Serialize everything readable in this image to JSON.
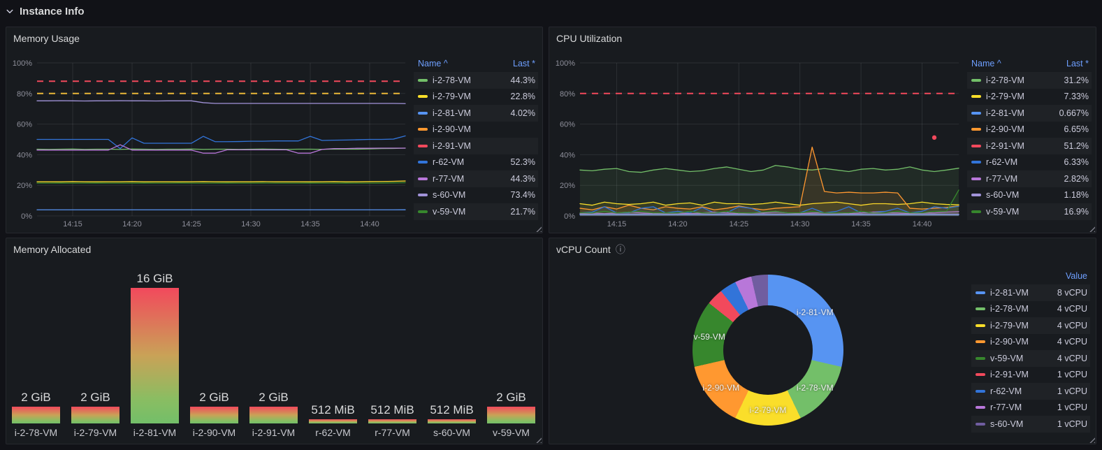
{
  "header": {
    "title": "Instance Info"
  },
  "icons": {
    "info": "ⓘ"
  },
  "legend_headers": {
    "name": "Name ^",
    "last": "Last *",
    "value": "Value"
  },
  "panels": {
    "memory_usage": {
      "title": "Memory Usage"
    },
    "cpu_utilization": {
      "title": "CPU Utilization"
    },
    "memory_allocated": {
      "title": "Memory Allocated"
    },
    "vcpu_count": {
      "title": "vCPU Count"
    }
  },
  "chart_data": [
    {
      "id": "memory_usage",
      "type": "line",
      "title": "Memory Usage",
      "ylim": [
        0,
        100
      ],
      "y_ticks": [
        {
          "v": 0,
          "label": "0%"
        },
        {
          "v": 20,
          "label": "20%"
        },
        {
          "v": 40,
          "label": "40%"
        },
        {
          "v": 60,
          "label": "60%"
        },
        {
          "v": 80,
          "label": "80%"
        },
        {
          "v": 100,
          "label": "100%"
        }
      ],
      "x_ticks": [
        {
          "f": 0.0968,
          "label": "14:15"
        },
        {
          "f": 0.2581,
          "label": "14:20"
        },
        {
          "f": 0.4194,
          "label": "14:25"
        },
        {
          "f": 0.5806,
          "label": "14:30"
        },
        {
          "f": 0.7419,
          "label": "14:35"
        },
        {
          "f": 0.9032,
          "label": "14:40"
        }
      ],
      "grid": true,
      "legend_position": "right",
      "fill_opacity": 0,
      "thresholds": [
        {
          "value": 88,
          "color": "#f2495c",
          "style": "dashed"
        },
        {
          "value": 80,
          "color": "#eab839",
          "style": "dashed"
        }
      ],
      "series": [
        {
          "name": "i-2-78-VM",
          "color": "#73bf69",
          "last": "44.3%",
          "values": [
            43.6,
            43.5,
            43.6,
            43.7,
            43.5,
            43.6,
            43.6,
            43.5,
            43.7,
            43.6,
            43.5,
            43.6,
            43.6,
            43.7,
            43.5,
            43.6,
            43.6,
            43.5,
            43.6,
            43.7,
            43.6,
            43.5,
            43.6,
            43.6,
            43.5,
            43.7,
            43.6,
            43.6,
            43.8,
            44.0,
            44.1,
            44.3
          ]
        },
        {
          "name": "i-2-79-VM",
          "color": "#fade2a",
          "last": "22.8%",
          "values": [
            22.3,
            22.3,
            22.3,
            22.4,
            22.3,
            22.3,
            22.3,
            22.3,
            22.4,
            22.3,
            22.3,
            22.3,
            22.3,
            22.3,
            22.4,
            22.3,
            22.3,
            22.3,
            22.3,
            22.4,
            22.3,
            22.3,
            22.3,
            22.3,
            22.3,
            22.4,
            22.3,
            22.3,
            22.4,
            22.5,
            22.6,
            22.8
          ]
        },
        {
          "name": "i-2-81-VM",
          "color": "#5794f2",
          "last": "4.02%",
          "values": [
            4,
            4,
            4,
            4,
            4,
            4,
            4,
            4,
            4,
            4,
            4,
            4,
            4,
            4,
            4,
            4,
            4,
            4,
            4,
            4,
            4,
            4,
            4,
            4,
            4,
            4,
            4,
            4,
            4,
            4,
            4,
            4.02
          ]
        },
        {
          "name": "i-2-90-VM",
          "color": "#ff9830",
          "last": "",
          "values": []
        },
        {
          "name": "i-2-91-VM",
          "color": "#f2495c",
          "last": "",
          "values": []
        },
        {
          "name": "r-62-VM",
          "color": "#3274d9",
          "last": "52.3%",
          "values": [
            50,
            50,
            50,
            50,
            50,
            50,
            50,
            44,
            51,
            47.5,
            47.5,
            47.5,
            47.5,
            47.5,
            52,
            48.5,
            48.5,
            48.6,
            48.8,
            48.8,
            49,
            49,
            49,
            52,
            49.3,
            49.5,
            49.6,
            49.8,
            50,
            50,
            50.2,
            52.3
          ]
        },
        {
          "name": "r-77-VM",
          "color": "#b877d9",
          "last": "44.3%",
          "values": [
            43,
            43,
            43,
            43,
            43,
            43,
            43,
            46.5,
            43,
            43,
            43,
            43,
            43,
            43,
            41,
            41,
            43.2,
            43.2,
            43.2,
            43.2,
            43.2,
            43.2,
            41,
            41,
            43.5,
            44,
            44,
            44.2,
            44.2,
            44.3,
            44.3,
            44.3
          ]
        },
        {
          "name": "s-60-VM",
          "color": "#a193d9",
          "last": "73.4%",
          "values": [
            75.2,
            75.2,
            75.3,
            75.2,
            75.1,
            75.2,
            75.2,
            75.3,
            75.2,
            75.2,
            75.1,
            75.2,
            75.2,
            75.2,
            74,
            73.5,
            73.5,
            73.5,
            73.5,
            73.5,
            73.5,
            73.5,
            73.5,
            73.5,
            73.5,
            73.5,
            73.5,
            73.5,
            73.5,
            73.5,
            73.5,
            73.4
          ]
        },
        {
          "name": "v-59-VM",
          "color": "#37872d",
          "last": "21.7%",
          "values": [
            21.4,
            21.4,
            21.5,
            21.4,
            21.4,
            21.5,
            21.4,
            21.4,
            21.4,
            21.5,
            21.4,
            21.4,
            21.5,
            21.4,
            21.4,
            21.4,
            21.5,
            21.4,
            21.4,
            21.5,
            21.4,
            21.4,
            21.4,
            21.5,
            21.4,
            21.4,
            21.5,
            21.4,
            21.4,
            21.5,
            21.6,
            21.7
          ]
        }
      ]
    },
    {
      "id": "cpu_utilization",
      "type": "line",
      "title": "CPU Utilization",
      "ylim": [
        0,
        100
      ],
      "y_ticks": [
        {
          "v": 0,
          "label": "0%"
        },
        {
          "v": 20,
          "label": "20%"
        },
        {
          "v": 40,
          "label": "40%"
        },
        {
          "v": 60,
          "label": "60%"
        },
        {
          "v": 80,
          "label": "80%"
        },
        {
          "v": 100,
          "label": "100%"
        }
      ],
      "x_ticks": [
        {
          "f": 0.0968,
          "label": "14:15"
        },
        {
          "f": 0.2581,
          "label": "14:20"
        },
        {
          "f": 0.4194,
          "label": "14:25"
        },
        {
          "f": 0.5806,
          "label": "14:30"
        },
        {
          "f": 0.7419,
          "label": "14:35"
        },
        {
          "f": 0.9032,
          "label": "14:40"
        }
      ],
      "grid": true,
      "legend_position": "right",
      "fill_opacity": 0.1,
      "thresholds": [
        {
          "value": 80,
          "color": "#f2495c",
          "style": "dashed"
        }
      ],
      "series": [
        {
          "name": "i-2-78-VM",
          "color": "#73bf69",
          "last": "31.2%",
          "values": [
            30,
            29.5,
            30.5,
            31,
            29,
            28.5,
            30,
            31,
            30,
            29,
            29.5,
            31,
            32,
            30.5,
            29,
            30,
            33,
            32,
            30.5,
            30,
            31,
            30,
            29,
            30.5,
            31,
            30,
            30.5,
            32,
            30,
            29,
            30,
            31.2
          ]
        },
        {
          "name": "i-2-79-VM",
          "color": "#fade2a",
          "last": "7.33%",
          "values": [
            8,
            7,
            9,
            8,
            7.5,
            8,
            9,
            7,
            8,
            8.5,
            7,
            9,
            8,
            8,
            7.5,
            8,
            9,
            8,
            7,
            8,
            8.5,
            9,
            8,
            7,
            8,
            8,
            7.5,
            8,
            9,
            8,
            7.5,
            7.33
          ]
        },
        {
          "name": "i-2-81-VM",
          "color": "#5794f2",
          "last": "0.667%",
          "values": [
            0.7,
            0.7,
            0.7,
            0.7,
            0.7,
            0.7,
            0.7,
            0.7,
            0.7,
            0.7,
            0.7,
            0.7,
            0.7,
            0.7,
            0.7,
            0.7,
            0.7,
            0.7,
            0.7,
            0.7,
            0.7,
            0.7,
            0.7,
            0.7,
            0.7,
            0.7,
            0.7,
            0.7,
            0.7,
            0.7,
            0.7,
            0.667
          ]
        },
        {
          "name": "i-2-90-VM",
          "color": "#ff9830",
          "last": "6.65%",
          "values": [
            5,
            4,
            6,
            4.5,
            7,
            5,
            4,
            6,
            5,
            4.5,
            6,
            4,
            5,
            6.5,
            5,
            4,
            5,
            5.5,
            6,
            45,
            16,
            15,
            15.5,
            15,
            15,
            15.5,
            15,
            5,
            4.5,
            5,
            5.5,
            6.65
          ]
        },
        {
          "name": "i-2-91-VM",
          "color": "#f2495c",
          "last": "51.2%",
          "values": [
            null,
            null,
            null,
            null,
            null,
            null,
            null,
            null,
            null,
            null,
            null,
            null,
            null,
            null,
            null,
            null,
            null,
            null,
            null,
            null,
            null,
            null,
            null,
            null,
            null,
            null,
            null,
            null,
            null,
            51.2,
            null,
            null
          ]
        },
        {
          "name": "r-62-VM",
          "color": "#3274d9",
          "last": "6.33%",
          "values": [
            2,
            2.5,
            6,
            2,
            2,
            5,
            6,
            2,
            3,
            2,
            5.5,
            2,
            2,
            6,
            5,
            2,
            3,
            2,
            2,
            5,
            2,
            3,
            6,
            2,
            2.5,
            3,
            5,
            2,
            3,
            6,
            5,
            6.33
          ]
        },
        {
          "name": "r-77-VM",
          "color": "#b877d9",
          "last": "2.82%",
          "values": [
            1.5,
            2,
            1.5,
            2,
            2.5,
            2,
            1.5,
            2,
            2,
            1.5,
            2,
            2.5,
            2,
            1.5,
            2,
            2,
            2.5,
            2,
            1.5,
            2,
            2,
            2,
            1.5,
            2,
            2.5,
            2,
            2,
            1.5,
            2,
            2,
            2.5,
            2.82
          ]
        },
        {
          "name": "s-60-VM",
          "color": "#a193d9",
          "last": "1.18%",
          "values": [
            1.2,
            1.2,
            1.3,
            1.2,
            1.2,
            1.2,
            1.3,
            1.2,
            1.2,
            1.2,
            1.3,
            1.2,
            1.2,
            1.2,
            1.2,
            1.3,
            1.2,
            1.2,
            1.2,
            1.3,
            1.2,
            1.2,
            1.2,
            1.2,
            1.3,
            1.2,
            1.2,
            1.2,
            1.3,
            1.2,
            1.2,
            1.18
          ]
        },
        {
          "name": "v-59-VM",
          "color": "#37872d",
          "last": "16.9%",
          "values": [
            2,
            2,
            3,
            2,
            2.5,
            3,
            2,
            2,
            2,
            3,
            2,
            2,
            3,
            2,
            2,
            2.5,
            3,
            2,
            2,
            3,
            2,
            2,
            2,
            3,
            2,
            2,
            3,
            2,
            2,
            3,
            3,
            16.9
          ]
        }
      ]
    },
    {
      "id": "memory_allocated",
      "type": "bar",
      "title": "Memory Allocated",
      "categories": [
        "i-2-78-VM",
        "i-2-79-VM",
        "i-2-81-VM",
        "i-2-90-VM",
        "i-2-91-VM",
        "r-62-VM",
        "r-77-VM",
        "s-60-VM",
        "v-59-VM"
      ],
      "values_gib": [
        2,
        2,
        16,
        2,
        2,
        0.5,
        0.5,
        0.5,
        2
      ],
      "labels": [
        "2 GiB",
        "2 GiB",
        "16 GiB",
        "2 GiB",
        "2 GiB",
        "512 MiB",
        "512 MiB",
        "512 MiB",
        "2 GiB"
      ],
      "ylim": [
        0,
        16
      ]
    },
    {
      "id": "vcpu_count",
      "type": "pie",
      "title": "vCPU Count",
      "unit": "vCPU",
      "legend_position": "right",
      "slices": [
        {
          "name": "i-2-81-VM",
          "value": 8,
          "value_label": "8 vCPU",
          "color": "#5794f2",
          "label_on_chart": true
        },
        {
          "name": "i-2-78-VM",
          "value": 4,
          "value_label": "4 vCPU",
          "color": "#73bf69",
          "label_on_chart": true
        },
        {
          "name": "i-2-79-VM",
          "value": 4,
          "value_label": "4 vCPU",
          "color": "#fade2a",
          "label_on_chart": true
        },
        {
          "name": "i-2-90-VM",
          "value": 4,
          "value_label": "4 vCPU",
          "color": "#ff9830",
          "label_on_chart": true
        },
        {
          "name": "v-59-VM",
          "value": 4,
          "value_label": "4 vCPU",
          "color": "#37872d",
          "label_on_chart": true
        },
        {
          "name": "i-2-91-VM",
          "value": 1,
          "value_label": "1 vCPU",
          "color": "#f2495c",
          "label_on_chart": false
        },
        {
          "name": "r-62-VM",
          "value": 1,
          "value_label": "1 vCPU",
          "color": "#3274d9",
          "label_on_chart": false
        },
        {
          "name": "r-77-VM",
          "value": 1,
          "value_label": "1 vCPU",
          "color": "#b877d9",
          "label_on_chart": false
        },
        {
          "name": "s-60-VM",
          "value": 1,
          "value_label": "1 vCPU",
          "color": "#705da0",
          "label_on_chart": false
        }
      ]
    }
  ]
}
